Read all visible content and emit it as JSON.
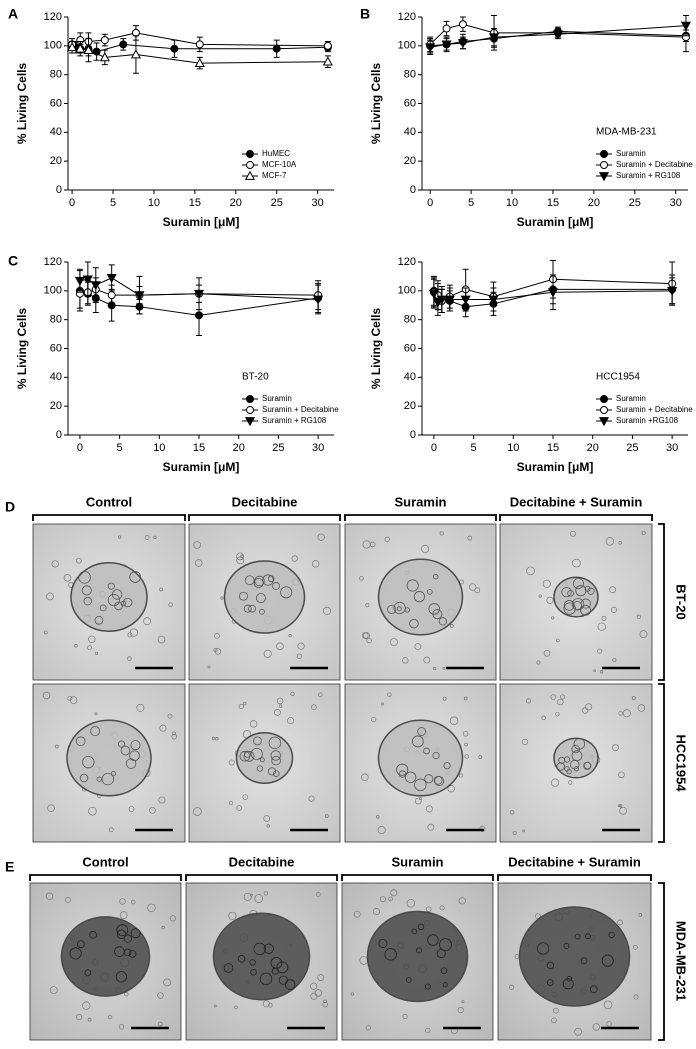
{
  "chart_data": [
    {
      "type": "line",
      "panel": "A",
      "xlabel": "Suramin [μM]",
      "ylabel": "% Living Cells",
      "xlim": [
        -0.5,
        32
      ],
      "xticks": [
        0,
        5,
        10,
        15,
        20,
        25,
        30
      ],
      "ylim": [
        0,
        120
      ],
      "yticks": [
        0,
        20,
        40,
        60,
        80,
        100,
        120
      ],
      "legend": "lower right",
      "series": [
        {
          "name": "HuMEC",
          "color": "#000000",
          "marker": "circle-filled",
          "x": [
            0,
            0.5,
            1,
            2,
            3,
            6.25,
            12.5,
            25,
            31.25
          ],
          "values": [
            100,
            99,
            98,
            98,
            96,
            101,
            98,
            98,
            99
          ],
          "errors": [
            3,
            4,
            3,
            5,
            6,
            4,
            6,
            6,
            3
          ]
        },
        {
          "name": "MCF-10A",
          "color": "#000000",
          "marker": "circle-open",
          "x": [
            0,
            1,
            2,
            4,
            7.8,
            15.6,
            31.25
          ],
          "values": [
            101,
            104,
            103,
            104,
            109,
            101,
            100
          ],
          "errors": [
            4,
            5,
            6,
            4,
            5,
            5,
            3
          ]
        },
        {
          "name": "MCF-7",
          "color": "#000000",
          "marker": "triangle-open",
          "x": [
            0,
            1,
            2,
            4,
            7.8,
            15.6,
            31.25
          ],
          "values": [
            99,
            98,
            97,
            92,
            94,
            88,
            89
          ],
          "errors": [
            4,
            5,
            8,
            5,
            13,
            4,
            4
          ]
        }
      ]
    },
    {
      "type": "line",
      "panel": "B",
      "xlabel": "Suramin [μM]",
      "ylabel": "% Living Cells",
      "annotation": "MDA-MB-231",
      "xlim": [
        -1,
        31.5
      ],
      "xticks": [
        0,
        5,
        10,
        15,
        20,
        25,
        30
      ],
      "ylim": [
        0,
        120
      ],
      "yticks": [
        0,
        20,
        40,
        60,
        80,
        100,
        120
      ],
      "legend": "lower right",
      "series": [
        {
          "name": "Suramin",
          "color": "#000000",
          "marker": "circle-filled",
          "x": [
            0,
            2,
            4,
            7.8,
            15.6,
            31.25
          ],
          "values": [
            100,
            101,
            103,
            105,
            110,
            107
          ],
          "errors": [
            5,
            5,
            5,
            6,
            3,
            4
          ]
        },
        {
          "name": "Suramin + Decitabine",
          "color": "#000000",
          "marker": "circle-open",
          "x": [
            0,
            2,
            4,
            7.8,
            15.6,
            31.25
          ],
          "values": [
            101,
            112,
            115,
            109,
            109,
            106
          ],
          "errors": [
            5,
            5,
            5,
            12,
            3,
            10
          ]
        },
        {
          "name": "Suramin + RG108",
          "color": "#000000",
          "marker": "triangle-down-filled",
          "x": [
            0,
            2,
            4,
            7.8,
            15.6,
            31.25
          ],
          "values": [
            99,
            101,
            102,
            106,
            108,
            114
          ],
          "errors": [
            5,
            4,
            4,
            6,
            3,
            7
          ]
        }
      ]
    },
    {
      "type": "line",
      "panel": "C",
      "xlabel": "Suramin [μM]",
      "ylabel": "% Living Cells",
      "annotation": "BT-20",
      "xlim": [
        -1.5,
        32
      ],
      "xticks": [
        0,
        5,
        10,
        15,
        20,
        25,
        30
      ],
      "ylim": [
        0,
        120
      ],
      "yticks": [
        0,
        20,
        40,
        60,
        80,
        100,
        120
      ],
      "legend": "lower right",
      "series": [
        {
          "name": "Suramin",
          "color": "#000000",
          "marker": "circle-filled",
          "x": [
            0,
            1,
            2,
            4,
            7.5,
            15,
            30
          ],
          "values": [
            100,
            98,
            95,
            90,
            89,
            83,
            95
          ],
          "errors": [
            14,
            8,
            10,
            11,
            5,
            14,
            10
          ]
        },
        {
          "name": "Suramin + Decitabine",
          "color": "#000000",
          "marker": "circle-open",
          "x": [
            0,
            1,
            2,
            4,
            7.5,
            15,
            30
          ],
          "values": [
            98,
            99,
            101,
            97,
            97,
            98,
            97
          ],
          "errors": [
            10,
            8,
            8,
            7,
            6,
            6,
            10
          ]
        },
        {
          "name": "Suramin + RG108",
          "color": "#000000",
          "marker": "triangle-down-filled",
          "x": [
            0,
            1,
            2,
            4,
            7.5,
            15,
            30
          ],
          "values": [
            107,
            108,
            104,
            109,
            97,
            98,
            94
          ],
          "errors": [
            8,
            12,
            12,
            9,
            13,
            11,
            10
          ]
        }
      ]
    },
    {
      "type": "line",
      "xlabel": "Suramin [μM]",
      "ylabel": "% Living Cells",
      "annotation": "HCC1954",
      "xlim": [
        -1.5,
        32
      ],
      "xticks": [
        0,
        5,
        10,
        15,
        20,
        25,
        30
      ],
      "ylim": [
        0,
        120
      ],
      "yticks": [
        0,
        20,
        40,
        60,
        80,
        100,
        120
      ],
      "legend": "lower right",
      "series": [
        {
          "name": "Suramin",
          "color": "#000000",
          "marker": "circle-filled",
          "x": [
            0,
            0.5,
            1,
            2,
            4,
            7.5,
            15,
            30
          ],
          "values": [
            100,
            96,
            93,
            93,
            89,
            91,
            101,
            101
          ],
          "errors": [
            10,
            9,
            8,
            7,
            7,
            8,
            10,
            10
          ]
        },
        {
          "name": "Suramin + Decitabine",
          "color": "#000000",
          "marker": "circle-open",
          "x": [
            0,
            0.5,
            1,
            2,
            4,
            7.5,
            15,
            30
          ],
          "values": [
            99,
            97,
            93,
            96,
            101,
            96,
            108,
            105
          ],
          "errors": [
            10,
            10,
            8,
            8,
            14,
            10,
            13,
            15
          ]
        },
        {
          "name": "Suramin +RG108",
          "color": "#000000",
          "marker": "triangle-down-filled",
          "x": [
            0,
            0.5,
            1,
            2,
            4,
            7.5,
            15,
            30
          ],
          "values": [
            98,
            92,
            94,
            94,
            94,
            94,
            99,
            100
          ],
          "errors": [
            10,
            9,
            9,
            8,
            8,
            8,
            12,
            9
          ]
        }
      ]
    }
  ],
  "panel_d": {
    "label": "D",
    "columns": [
      "Control",
      "Decitabine",
      "Suramin",
      "Decitabine + Suramin"
    ],
    "rows": [
      "BT-20",
      "HCC1954"
    ]
  },
  "panel_e": {
    "label": "E",
    "columns": [
      "Control",
      "Decitabine",
      "Suramin",
      "Decitabine + Suramin"
    ],
    "rows": [
      "MDA-MB-231"
    ]
  }
}
